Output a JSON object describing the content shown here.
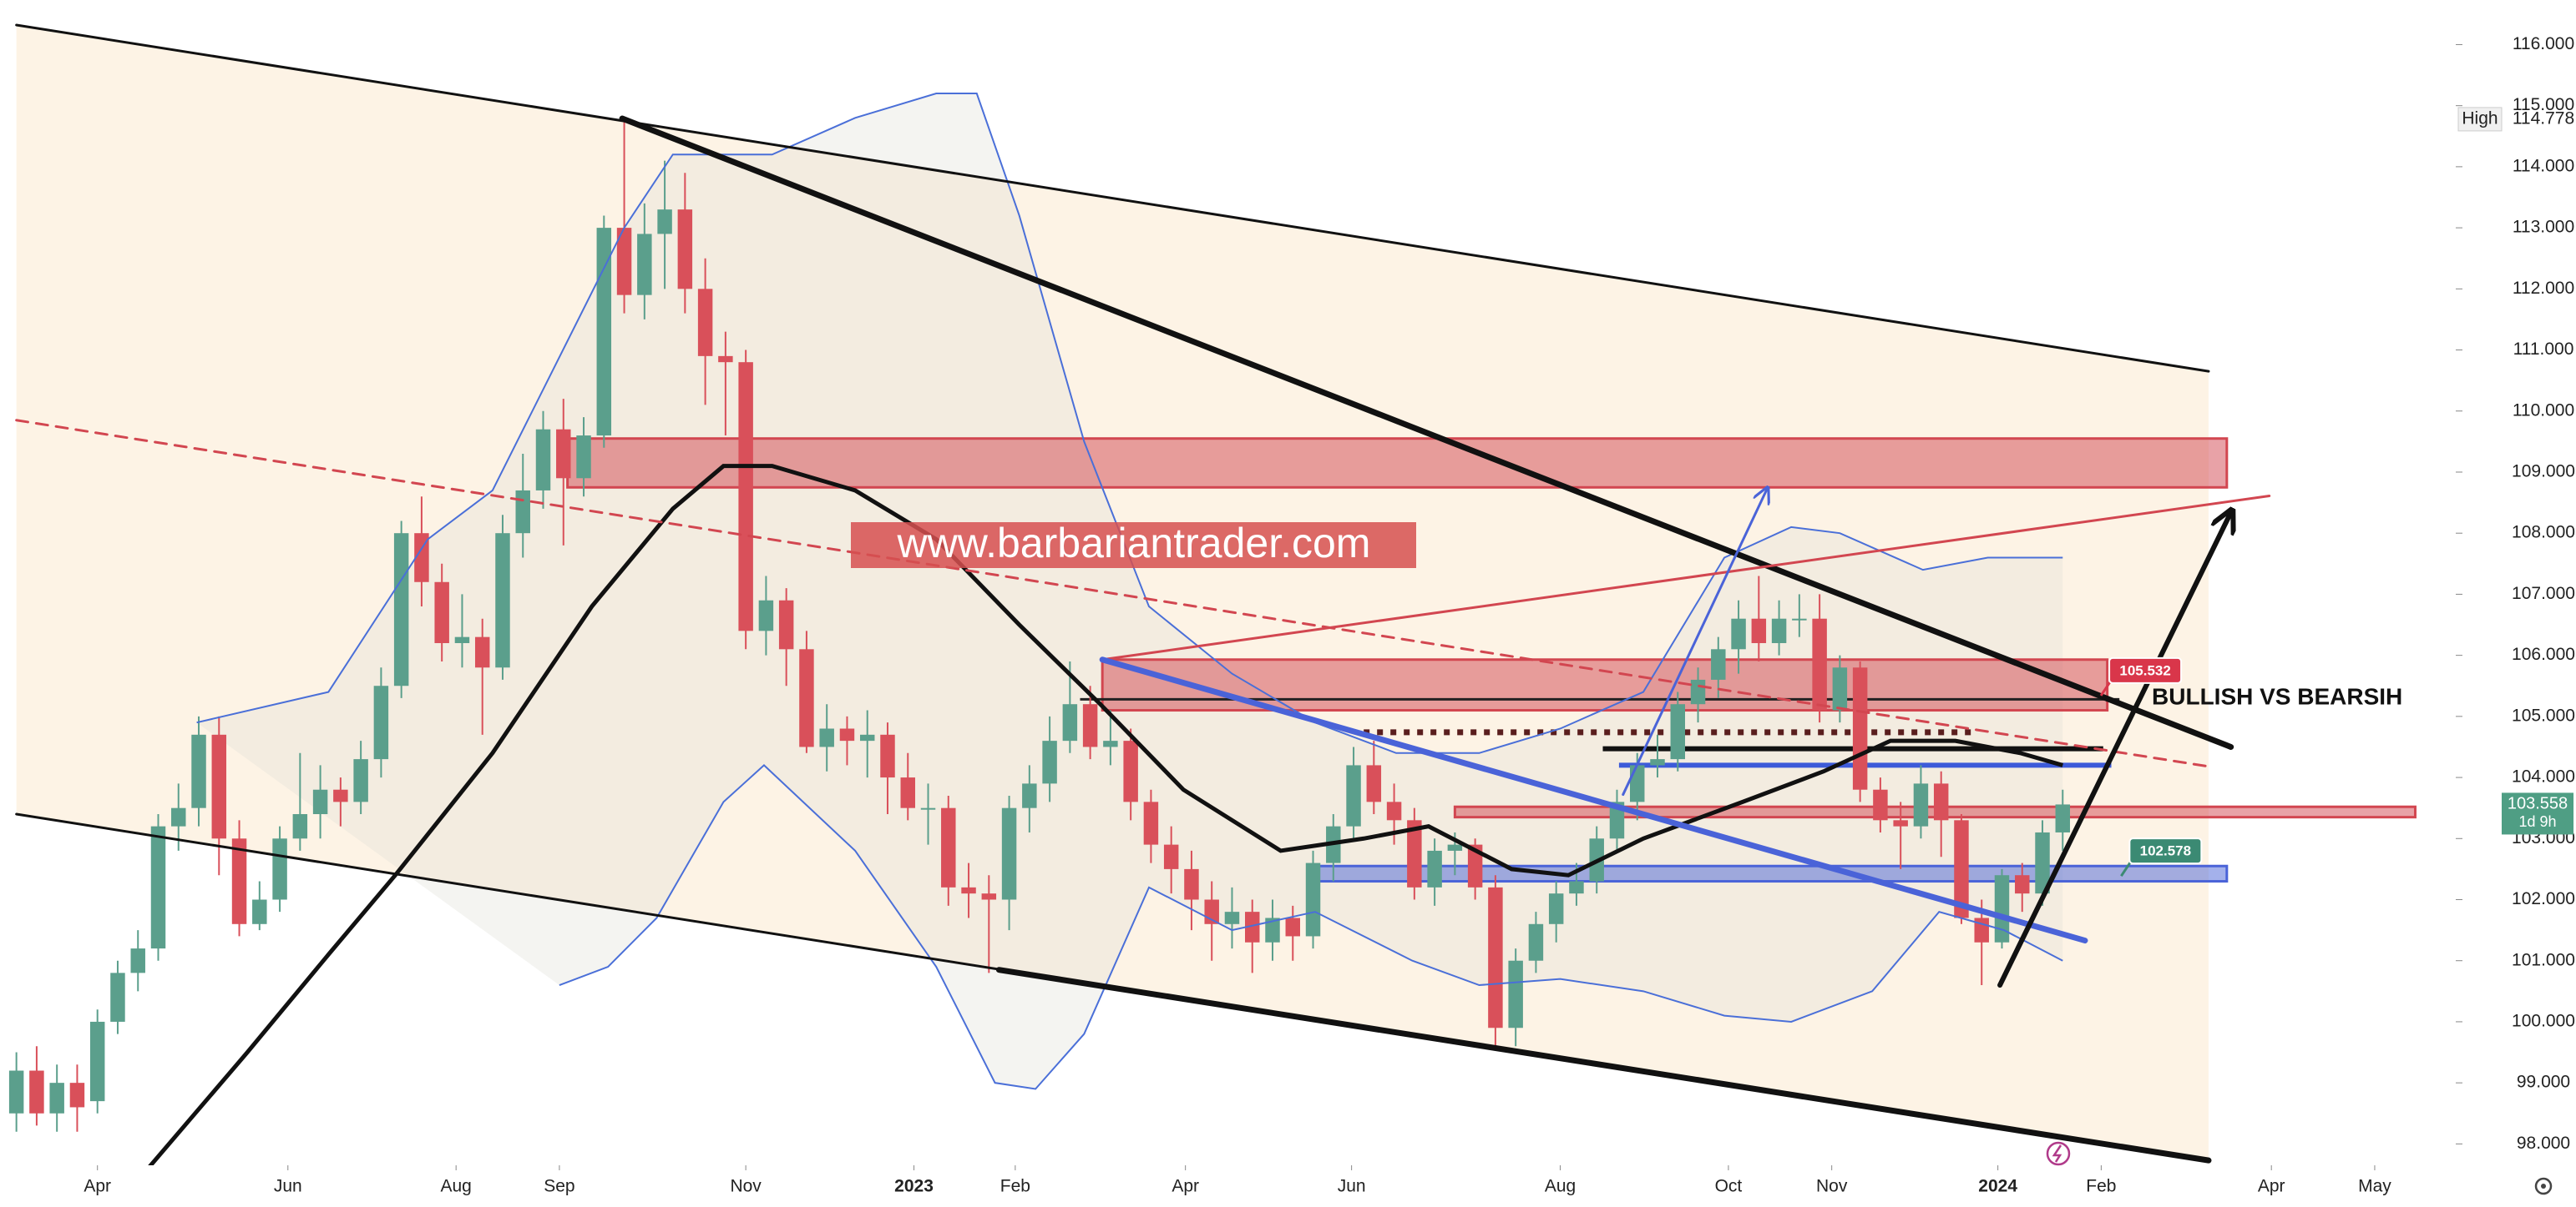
{
  "chart_data": {
    "type": "candlestick",
    "watermark": "www.barbariantrader.com",
    "annotation": {
      "text": "BULLISH VS BEARSIH",
      "x": 105.4,
      "y": 105.3
    },
    "up_color": "#5b9f8c",
    "down_color": "#d9505a",
    "xlim": [
      -0.81,
      120.4
    ],
    "xticks": [
      {
        "value": 4.0,
        "label": "Apr"
      },
      {
        "value": 13.4,
        "label": "Jun"
      },
      {
        "value": 21.7,
        "label": "Aug"
      },
      {
        "value": 26.8,
        "label": "Sep"
      },
      {
        "value": 36.0,
        "label": "Nov"
      },
      {
        "value": 44.3,
        "label": "2023"
      },
      {
        "value": 49.3,
        "label": "Feb"
      },
      {
        "value": 57.7,
        "label": "Apr"
      },
      {
        "value": 65.9,
        "label": "Jun"
      },
      {
        "value": 76.2,
        "label": "Aug"
      },
      {
        "value": 84.5,
        "label": "Oct"
      },
      {
        "value": 89.6,
        "label": "Nov"
      },
      {
        "value": 97.8,
        "label": "2024"
      },
      {
        "value": 102.9,
        "label": "Feb"
      },
      {
        "value": 111.3,
        "label": "Apr"
      },
      {
        "value": 116.4,
        "label": "May"
      }
    ],
    "ylim": [
      97.65,
      116.73
    ],
    "yticks": [
      {
        "value": 98,
        "label": "98.000"
      },
      {
        "value": 99,
        "label": "99.000"
      },
      {
        "value": 100,
        "label": "100.000"
      },
      {
        "value": 101,
        "label": "101.000"
      },
      {
        "value": 102,
        "label": "102.000"
      },
      {
        "value": 103,
        "label": "103.000"
      },
      {
        "value": 104,
        "label": "104.000"
      },
      {
        "value": 105,
        "label": "105.000"
      },
      {
        "value": 106,
        "label": "106.000"
      },
      {
        "value": 107,
        "label": "107.000"
      },
      {
        "value": 108,
        "label": "108.000"
      },
      {
        "value": 109,
        "label": "109.000"
      },
      {
        "value": 110,
        "label": "110.000"
      },
      {
        "value": 111,
        "label": "111.000"
      },
      {
        "value": 112,
        "label": "112.000"
      },
      {
        "value": 113,
        "label": "113.000"
      },
      {
        "value": 114,
        "label": "114.000"
      },
      {
        "value": 115,
        "label": "115.000"
      },
      {
        "value": 116,
        "label": "116.000"
      }
    ],
    "candles": [
      [
        98.5,
        99.5,
        98.2,
        99.2
      ],
      [
        99.2,
        99.6,
        98.3,
        98.5
      ],
      [
        98.5,
        99.3,
        98.2,
        99.0
      ],
      [
        99.0,
        99.3,
        98.2,
        98.6
      ],
      [
        98.7,
        100.2,
        98.5,
        100.0
      ],
      [
        100.0,
        101.0,
        99.8,
        100.8
      ],
      [
        100.8,
        101.5,
        100.5,
        101.2
      ],
      [
        101.2,
        103.4,
        101.0,
        103.2
      ],
      [
        103.2,
        103.9,
        102.8,
        103.5
      ],
      [
        103.5,
        105.0,
        103.2,
        104.7
      ],
      [
        104.7,
        105.0,
        102.4,
        103.0
      ],
      [
        103.0,
        103.3,
        101.4,
        101.6
      ],
      [
        101.6,
        102.3,
        101.5,
        102.0
      ],
      [
        102.0,
        103.2,
        101.8,
        103.0
      ],
      [
        103.0,
        104.4,
        102.8,
        103.4
      ],
      [
        103.4,
        104.2,
        103.0,
        103.8
      ],
      [
        103.8,
        104.0,
        103.2,
        103.6
      ],
      [
        103.6,
        104.6,
        103.4,
        104.3
      ],
      [
        104.3,
        105.8,
        104.0,
        105.5
      ],
      [
        105.5,
        108.2,
        105.3,
        108.0
      ],
      [
        108.0,
        108.6,
        106.8,
        107.2
      ],
      [
        107.2,
        107.5,
        105.9,
        106.2
      ],
      [
        106.2,
        107.0,
        105.8,
        106.3
      ],
      [
        106.3,
        106.6,
        104.7,
        105.8
      ],
      [
        105.8,
        108.3,
        105.6,
        108.0
      ],
      [
        108.0,
        109.3,
        107.6,
        108.7
      ],
      [
        108.7,
        110.0,
        108.4,
        109.7
      ],
      [
        109.7,
        110.2,
        107.8,
        108.9
      ],
      [
        108.9,
        109.9,
        108.6,
        109.6
      ],
      [
        109.6,
        113.2,
        109.4,
        113.0
      ],
      [
        113.0,
        114.778,
        111.6,
        111.9
      ],
      [
        111.9,
        113.4,
        111.5,
        112.9
      ],
      [
        112.9,
        114.1,
        112.0,
        113.3
      ],
      [
        113.3,
        113.9,
        111.6,
        112.0
      ],
      [
        112.0,
        112.5,
        110.1,
        110.9
      ],
      [
        110.9,
        111.3,
        109.6,
        110.8
      ],
      [
        110.8,
        111.0,
        106.1,
        106.4
      ],
      [
        106.4,
        107.3,
        106.0,
        106.9
      ],
      [
        106.9,
        107.1,
        105.5,
        106.1
      ],
      [
        106.1,
        106.4,
        104.4,
        104.5
      ],
      [
        104.5,
        105.2,
        104.1,
        104.8
      ],
      [
        104.8,
        105.0,
        104.2,
        104.6
      ],
      [
        104.6,
        105.1,
        104.0,
        104.7
      ],
      [
        104.7,
        104.9,
        103.4,
        104.0
      ],
      [
        104.0,
        104.4,
        103.3,
        103.5
      ],
      [
        103.5,
        103.9,
        102.9,
        103.5
      ],
      [
        103.5,
        103.7,
        101.9,
        102.2
      ],
      [
        102.2,
        102.6,
        101.7,
        102.1
      ],
      [
        102.1,
        102.4,
        100.8,
        102.0
      ],
      [
        102.0,
        103.7,
        101.5,
        103.5
      ],
      [
        103.5,
        104.2,
        103.1,
        103.9
      ],
      [
        103.9,
        105.0,
        103.6,
        104.6
      ],
      [
        104.6,
        105.9,
        104.4,
        105.2
      ],
      [
        105.2,
        105.5,
        104.3,
        104.5
      ],
      [
        104.5,
        105.1,
        104.2,
        104.6
      ],
      [
        104.6,
        104.8,
        103.3,
        103.6
      ],
      [
        103.6,
        103.8,
        102.6,
        102.9
      ],
      [
        102.9,
        103.2,
        102.1,
        102.5
      ],
      [
        102.5,
        102.8,
        101.5,
        102.0
      ],
      [
        102.0,
        102.3,
        101.0,
        101.6
      ],
      [
        101.6,
        102.2,
        101.2,
        101.8
      ],
      [
        101.8,
        102.0,
        100.8,
        101.3
      ],
      [
        101.3,
        102.0,
        101.0,
        101.7
      ],
      [
        101.7,
        101.9,
        101.0,
        101.4
      ],
      [
        101.4,
        102.8,
        101.2,
        102.6
      ],
      [
        102.6,
        103.4,
        102.3,
        103.2
      ],
      [
        103.2,
        104.5,
        103.0,
        104.2
      ],
      [
        104.2,
        104.6,
        103.4,
        103.6
      ],
      [
        103.6,
        103.9,
        102.9,
        103.3
      ],
      [
        103.3,
        103.5,
        102.0,
        102.2
      ],
      [
        102.2,
        103.0,
        101.9,
        102.8
      ],
      [
        102.8,
        103.1,
        102.4,
        102.9
      ],
      [
        102.9,
        103.0,
        102.0,
        102.2
      ],
      [
        102.2,
        102.4,
        99.6,
        99.9
      ],
      [
        99.9,
        101.2,
        99.6,
        101.0
      ],
      [
        101.0,
        101.8,
        100.8,
        101.6
      ],
      [
        101.6,
        102.3,
        101.3,
        102.1
      ],
      [
        102.1,
        102.6,
        101.9,
        102.3
      ],
      [
        102.3,
        103.2,
        102.1,
        103.0
      ],
      [
        103.0,
        103.8,
        102.8,
        103.6
      ],
      [
        103.6,
        104.4,
        103.3,
        104.2
      ],
      [
        104.2,
        104.7,
        104.0,
        104.3
      ],
      [
        104.3,
        105.4,
        104.1,
        105.2
      ],
      [
        105.2,
        105.8,
        104.9,
        105.6
      ],
      [
        105.6,
        106.3,
        105.3,
        106.1
      ],
      [
        106.1,
        106.9,
        105.7,
        106.6
      ],
      [
        106.6,
        107.3,
        105.9,
        106.2
      ],
      [
        106.2,
        106.9,
        106.0,
        106.6
      ],
      [
        106.6,
        107.0,
        106.3,
        106.6
      ],
      [
        106.6,
        107.0,
        104.9,
        105.1
      ],
      [
        105.1,
        106.0,
        104.9,
        105.8
      ],
      [
        105.8,
        105.9,
        103.6,
        103.8
      ],
      [
        103.8,
        104.0,
        103.1,
        103.3
      ],
      [
        103.3,
        103.6,
        102.5,
        103.2
      ],
      [
        103.2,
        104.2,
        103.0,
        103.9
      ],
      [
        103.9,
        104.1,
        102.7,
        103.3
      ],
      [
        103.3,
        103.4,
        101.6,
        101.7
      ],
      [
        101.7,
        102.0,
        100.6,
        101.3
      ],
      [
        101.3,
        102.5,
        101.2,
        102.4
      ],
      [
        102.4,
        102.6,
        101.8,
        102.1
      ],
      [
        102.1,
        103.3,
        101.9,
        103.1
      ],
      [
        103.1,
        103.8,
        102.8,
        103.558
      ]
    ],
    "indicators": [
      {
        "color": "#4a6fd8",
        "x": [
          8.9,
          15.4,
          20.3,
          23.5,
          30.0,
          32.4,
          37.3,
          41.4,
          45.4,
          47.4,
          49.5,
          52.7,
          55.9,
          60.0,
          64.1,
          68.1,
          72.2,
          76.2,
          80.3,
          84.3,
          87.6,
          90.0,
          94.1,
          97.3,
          101.0
        ],
        "values": [
          104.9,
          105.4,
          107.9,
          108.7,
          113.0,
          114.2,
          114.2,
          114.8,
          115.2,
          115.2,
          113.2,
          109.5,
          106.8,
          105.7,
          104.9,
          104.4,
          104.4,
          104.8,
          105.4,
          107.6,
          108.1,
          108.0,
          107.4,
          107.6,
          107.6
        ]
      },
      {
        "color": "#4a6fd8",
        "x": [
          26.8,
          29.2,
          31.6,
          34.9,
          36.9,
          41.4,
          45.4,
          48.3,
          50.3,
          52.7,
          55.9,
          60.0,
          64.1,
          68.9,
          72.2,
          76.2,
          80.3,
          84.3,
          87.6,
          91.6,
          94.9,
          98.1,
          101.0
        ],
        "values": [
          100.6,
          100.9,
          101.7,
          103.6,
          104.2,
          102.8,
          100.9,
          99.0,
          98.9,
          99.8,
          102.2,
          101.5,
          101.8,
          101.0,
          100.6,
          100.7,
          100.5,
          100.1,
          100.0,
          100.5,
          101.8,
          101.5,
          101.0
        ]
      },
      {
        "color": "#111111",
        "x": [
          6.5,
          11.4,
          15.4,
          18.7,
          23.5,
          28.4,
          32.4,
          34.9,
          37.3,
          41.4,
          45.4,
          49.5,
          53.5,
          57.6,
          62.4,
          66.5,
          69.7,
          73.8,
          76.6,
          80.3,
          85.2,
          89.2,
          92.5,
          95.7,
          98.9,
          101.0
        ],
        "values": [
          97.6,
          99.5,
          101.1,
          102.4,
          104.4,
          106.8,
          108.4,
          109.1,
          109.1,
          108.7,
          107.9,
          106.5,
          105.2,
          103.8,
          102.8,
          103.0,
          103.2,
          102.5,
          102.4,
          103.0,
          103.6,
          104.1,
          104.6,
          104.6,
          104.4,
          104.2
        ]
      }
    ],
    "zones": [
      {
        "x": [
          27.2,
          109.1
        ],
        "y": [
          108.75,
          109.55
        ],
        "color": "#d24650"
      },
      {
        "x": [
          53.6,
          103.2
        ],
        "y": [
          105.1,
          105.93
        ],
        "color": "#d24650"
      },
      {
        "x": [
          71.0,
          118.4
        ],
        "y": [
          103.35,
          103.52
        ],
        "color": "#d24650"
      },
      {
        "x": [
          63.9,
          109.1
        ],
        "y": [
          102.3,
          102.55
        ],
        "color": "#4a63d8"
      }
    ],
    "levels": [
      {
        "x": [
          52.5,
          103.8
        ],
        "y": 105.28,
        "color": "#222222",
        "style": "thin"
      },
      {
        "x": [
          66.5,
          96.5
        ],
        "y": 104.74,
        "color": "#5a1e1e",
        "style": "dotted"
      },
      {
        "x": [
          78.3,
          103.0
        ],
        "y": 104.47,
        "color": "#111111",
        "style": "thick"
      },
      {
        "x": [
          79.1,
          103.4
        ],
        "y": 104.2,
        "color": "#3d5bd9",
        "style": "thick"
      }
    ],
    "trendlines": [
      {
        "points": [
          [
            0,
            116.32
          ],
          [
            108.2,
            110.65
          ]
        ],
        "color": "#111111",
        "style": "thin"
      },
      {
        "points": [
          [
            0,
            103.4
          ],
          [
            108.2,
            97.73
          ]
        ],
        "color": "#111111",
        "style": "thin"
      },
      {
        "points": [
          [
            48.5,
            100.85
          ],
          [
            108.2,
            97.73
          ]
        ],
        "color": "#111111",
        "style": "thick"
      },
      {
        "points": [
          [
            29.9,
            114.79
          ],
          [
            109.3,
            104.5
          ]
        ],
        "color": "#111111",
        "style": "thick"
      },
      {
        "points": [
          [
            0,
            109.85
          ],
          [
            108.2,
            104.18
          ]
        ],
        "color": "#d24650",
        "style": "dashed"
      },
      {
        "points": [
          [
            53.6,
            105.93
          ],
          [
            111.2,
            108.61
          ]
        ],
        "color": "#d24650",
        "style": "thin"
      },
      {
        "points": [
          [
            53.6,
            105.93
          ],
          [
            102.1,
            101.33
          ]
        ],
        "color": "#4a63d8",
        "style": "thick"
      },
      {
        "points": [
          [
            97.9,
            100.6
          ],
          [
            109.3,
            108.34
          ]
        ],
        "color": "#111111",
        "style": "arrow"
      },
      {
        "points": [
          [
            79.3,
            103.72
          ],
          [
            86.4,
            108.72
          ]
        ],
        "color": "#4a63d8",
        "style": "arrow-thin"
      }
    ],
    "callouts": [
      {
        "x": 103.3,
        "value": 105.532,
        "color": "#d9364a"
      },
      {
        "x": 104.3,
        "value": 102.578,
        "color": "#3b8a73"
      }
    ],
    "high_marker": {
      "label": "High",
      "value": 114.778
    },
    "last_price": {
      "value": 103.558,
      "countdown": "1d 9h",
      "color": "#4f9e84"
    }
  }
}
